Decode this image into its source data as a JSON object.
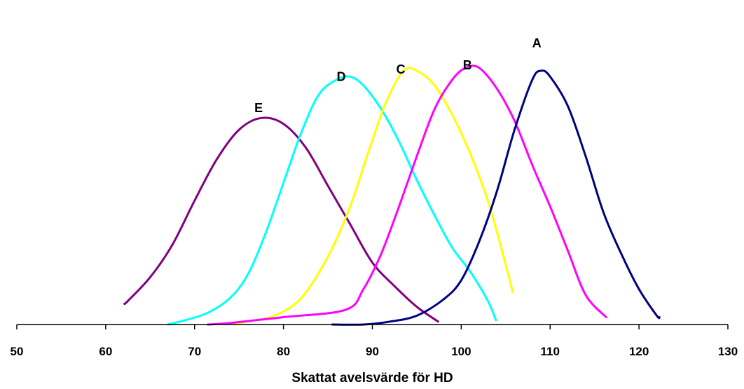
{
  "chart_data": {
    "type": "line",
    "xlabel": "Skattat avelsvärde för HD",
    "ylabel": "",
    "xlim": [
      50,
      130
    ],
    "ylim": [
      0,
      100
    ],
    "x_ticks": [
      50,
      60,
      70,
      80,
      90,
      100,
      110,
      120,
      130
    ],
    "x_tick_labels": [
      "50",
      "60",
      "70",
      "80",
      "90",
      "100",
      "110",
      "120",
      "130"
    ],
    "grid": false,
    "legend": "none",
    "series": [
      {
        "name": "E",
        "color": "#800080",
        "points": [
          [
            62.1,
            7
          ],
          [
            62.5,
            8
          ],
          [
            65,
            16
          ],
          [
            67.5,
            27
          ],
          [
            70,
            42
          ],
          [
            72.5,
            56
          ],
          [
            75,
            66
          ],
          [
            77.5,
            70
          ],
          [
            80,
            68
          ],
          [
            82.5,
            60
          ],
          [
            85,
            47
          ],
          [
            87.5,
            34
          ],
          [
            90,
            21
          ],
          [
            92.5,
            13
          ],
          [
            95,
            6
          ],
          [
            97.4,
            1
          ]
        ]
      },
      {
        "name": "D",
        "color": "#00FFFF",
        "points": [
          [
            67,
            0
          ],
          [
            69,
            1.5
          ],
          [
            71.5,
            4
          ],
          [
            74,
            9
          ],
          [
            76,
            17
          ],
          [
            78,
            31
          ],
          [
            80,
            48
          ],
          [
            82,
            65
          ],
          [
            84,
            78
          ],
          [
            86,
            83
          ],
          [
            87.5,
            84
          ],
          [
            89,
            81
          ],
          [
            91,
            73
          ],
          [
            93,
            62
          ],
          [
            95,
            49
          ],
          [
            97,
            37
          ],
          [
            99,
            26
          ],
          [
            101,
            18
          ],
          [
            103,
            8
          ],
          [
            103.9,
            1.5
          ]
        ]
      },
      {
        "name": "C",
        "color": "#FFFF00",
        "points": [
          [
            74.5,
            0
          ],
          [
            76,
            1
          ],
          [
            79,
            3
          ],
          [
            82,
            9
          ],
          [
            85,
            23
          ],
          [
            87.5,
            40
          ],
          [
            89.5,
            58
          ],
          [
            91.5,
            75
          ],
          [
            93.5,
            86
          ],
          [
            95,
            86
          ],
          [
            97,
            81
          ],
          [
            99,
            71
          ],
          [
            101,
            58
          ],
          [
            103,
            42
          ],
          [
            104.5,
            26
          ],
          [
            105.8,
            11
          ]
        ]
      },
      {
        "name": "B",
        "color": "#FF00FF",
        "points": [
          [
            71.5,
            0
          ],
          [
            74,
            0.5
          ],
          [
            80,
            2.5
          ],
          [
            87,
            5
          ],
          [
            89,
            12
          ],
          [
            91,
            24
          ],
          [
            93,
            40
          ],
          [
            95,
            57
          ],
          [
            97,
            73
          ],
          [
            99,
            83
          ],
          [
            100.5,
            87
          ],
          [
            102,
            87
          ],
          [
            104,
            80
          ],
          [
            106,
            69
          ],
          [
            108,
            54
          ],
          [
            110,
            40
          ],
          [
            112,
            25
          ],
          [
            114,
            10
          ],
          [
            116.3,
            2.5
          ]
        ]
      },
      {
        "name": "A",
        "color": "#000080",
        "points": [
          [
            85.5,
            0
          ],
          [
            89,
            0
          ],
          [
            92,
            1
          ],
          [
            95,
            3
          ],
          [
            98,
            8.5
          ],
          [
            100,
            15
          ],
          [
            102,
            28
          ],
          [
            104,
            45
          ],
          [
            106,
            66
          ],
          [
            108,
            83
          ],
          [
            109,
            86
          ],
          [
            110,
            84
          ],
          [
            112,
            74
          ],
          [
            114,
            57
          ],
          [
            116,
            38
          ],
          [
            118,
            24
          ],
          [
            120,
            12
          ],
          [
            122,
            3
          ],
          [
            122.3,
            2.5
          ]
        ]
      }
    ],
    "annotations": [
      {
        "text": "A",
        "x": 108.5,
        "y": 94
      },
      {
        "text": "B",
        "x": 100.7,
        "y": 86.5
      },
      {
        "text": "C",
        "x": 93.2,
        "y": 85
      },
      {
        "text": "D",
        "x": 86.5,
        "y": 82.5
      },
      {
        "text": "E",
        "x": 77.2,
        "y": 72
      }
    ]
  }
}
